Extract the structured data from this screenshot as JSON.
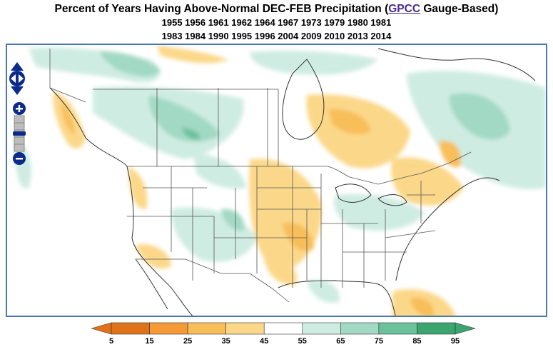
{
  "header": {
    "title_prefix": "Percent of Years Having Above-Normal DEC-FEB Precipitation (",
    "title_link": "GPCC",
    "title_suffix": " Gauge-Based)",
    "years_line1": "1955 1956 1961 1962 1964 1967 1973 1979 1980 1981",
    "years_line2": "1983 1984 1990 1995 1996 2004 2009 2010 2013 2014"
  },
  "controls": {
    "pan_icon": "pan-arrows-icon",
    "zoom_in_icon": "zoom-in-icon",
    "zoom_out_icon": "zoom-out-icon"
  },
  "legend": {
    "ticks": [
      "5",
      "15",
      "25",
      "35",
      "45",
      "55",
      "65",
      "75",
      "85",
      "95"
    ],
    "colors": [
      "#e0731a",
      "#f59a36",
      "#f8be5a",
      "#fbd889",
      "#fdedc0",
      "#ffffff",
      "#cfece3",
      "#a2d9c4",
      "#6cc19d",
      "#3aa56f"
    ]
  },
  "palette": {
    "map_border": "#4a78b5",
    "boundary_lines": "#555555",
    "coastline": "#333333"
  }
}
